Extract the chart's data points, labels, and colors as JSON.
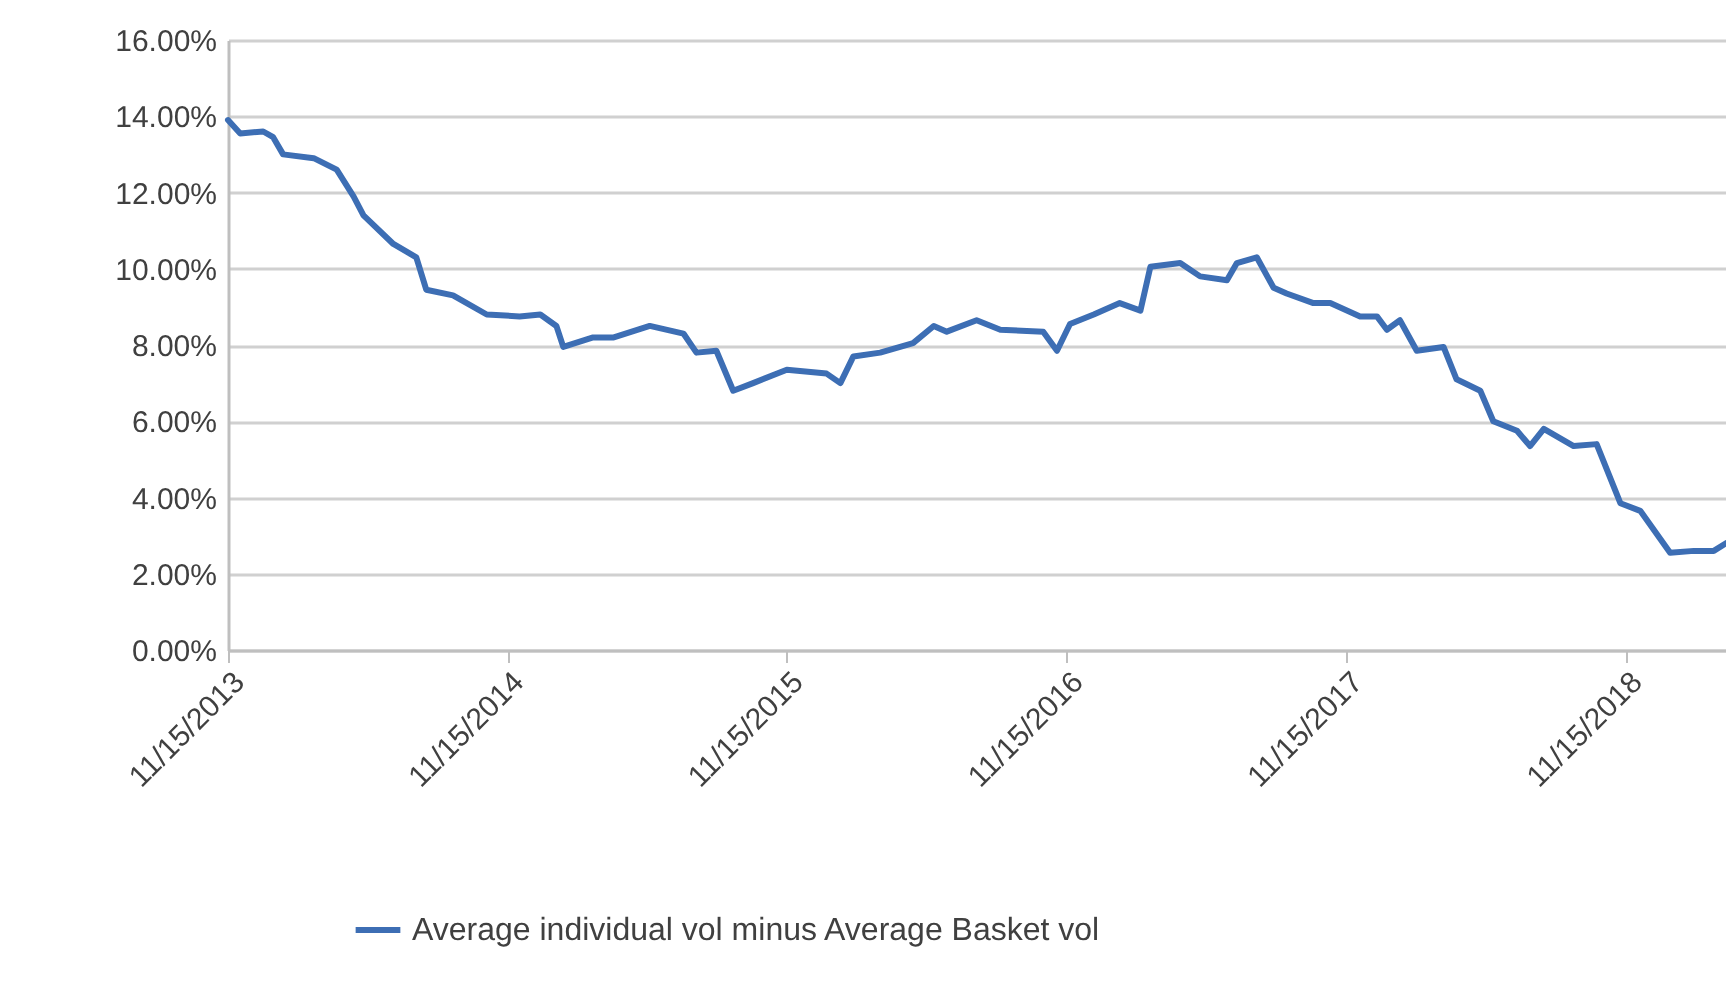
{
  "chart_data": {
    "type": "line",
    "grid": "y",
    "legend": "bottom",
    "line_style": "solid",
    "xlim": [
      "2013-11-15",
      "2019-03-26"
    ],
    "xticks": [
      {
        "value": "2013-11-15",
        "label": "11/15/2013"
      },
      {
        "value": "2014-11-15",
        "label": "11/15/2014"
      },
      {
        "value": "2015-11-15",
        "label": "11/15/2015"
      },
      {
        "value": "2016-11-15",
        "label": "11/15/2016"
      },
      {
        "value": "2017-11-15",
        "label": "11/15/2017"
      },
      {
        "value": "2018-11-15",
        "label": "11/15/2018"
      }
    ],
    "ylim": [
      0,
      16
    ],
    "yticks": [
      {
        "value": 0,
        "label": "0.00%"
      },
      {
        "value": 2,
        "label": "2.00%"
      },
      {
        "value": 4,
        "label": "4.00%"
      },
      {
        "value": 6,
        "label": "6.00%"
      },
      {
        "value": 8,
        "label": "8.00%"
      },
      {
        "value": 10,
        "label": "10.00%"
      },
      {
        "value": 12,
        "label": "12.00%"
      },
      {
        "value": 14,
        "label": "14.00%"
      },
      {
        "value": 16,
        "label": "16.00%"
      }
    ],
    "x": [
      "2013-11-15",
      "2013-12-01",
      "2013-12-31",
      "2014-01-13",
      "2014-01-26",
      "2014-03-07",
      "2014-04-06",
      "2014-04-28",
      "2014-05-11",
      "2014-06-19",
      "2014-07-19",
      "2014-08-01",
      "2014-09-05",
      "2014-10-19",
      "2014-12-01",
      "2014-12-28",
      "2015-01-18",
      "2015-01-27",
      "2015-03-07",
      "2015-04-03",
      "2015-05-20",
      "2015-07-03",
      "2015-07-20",
      "2015-08-15",
      "2015-09-06",
      "2015-10-02",
      "2015-11-15",
      "2016-01-06",
      "2016-01-24",
      "2016-02-10",
      "2016-03-16",
      "2016-04-28",
      "2016-05-25",
      "2016-06-11",
      "2016-07-20",
      "2016-08-20",
      "2016-10-15",
      "2016-11-02",
      "2016-11-19",
      "2016-12-20",
      "2017-01-23",
      "2017-02-19",
      "2017-03-04",
      "2017-04-12",
      "2017-05-08",
      "2017-06-12",
      "2017-06-25",
      "2017-07-21",
      "2017-08-12",
      "2017-08-29",
      "2017-10-03",
      "2017-10-25",
      "2017-12-03",
      "2017-12-25",
      "2018-01-07",
      "2018-01-24",
      "2018-02-15",
      "2018-03-22",
      "2018-04-08",
      "2018-05-09",
      "2018-05-26",
      "2018-06-26",
      "2018-07-13",
      "2018-07-31",
      "2018-09-08",
      "2018-10-08",
      "2018-11-08",
      "2018-12-04",
      "2019-01-12",
      "2019-02-12",
      "2019-03-10",
      "2019-03-26"
    ],
    "series": [
      {
        "name": "Average individual vol minus Average Basket vol",
        "color": "#3d6eb4",
        "values": [
          13.9,
          13.55,
          13.6,
          13.45,
          13.0,
          12.9,
          12.6,
          11.9,
          11.4,
          10.65,
          10.3,
          9.45,
          9.3,
          8.8,
          8.75,
          8.8,
          8.5,
          7.95,
          8.2,
          8.2,
          8.5,
          8.3,
          7.8,
          7.85,
          6.8,
          7.0,
          7.35,
          7.25,
          7.0,
          7.7,
          7.8,
          8.05,
          8.5,
          8.35,
          8.65,
          8.4,
          8.35,
          7.85,
          8.55,
          8.8,
          9.1,
          8.9,
          10.05,
          10.15,
          9.8,
          9.7,
          10.15,
          10.3,
          9.5,
          9.35,
          9.1,
          9.1,
          8.75,
          8.75,
          8.4,
          8.65,
          7.85,
          7.95,
          7.1,
          6.8,
          6.0,
          5.75,
          5.35,
          5.8,
          5.35,
          5.4,
          3.85,
          3.65,
          2.55,
          2.6,
          2.6,
          2.8
        ]
      }
    ]
  }
}
